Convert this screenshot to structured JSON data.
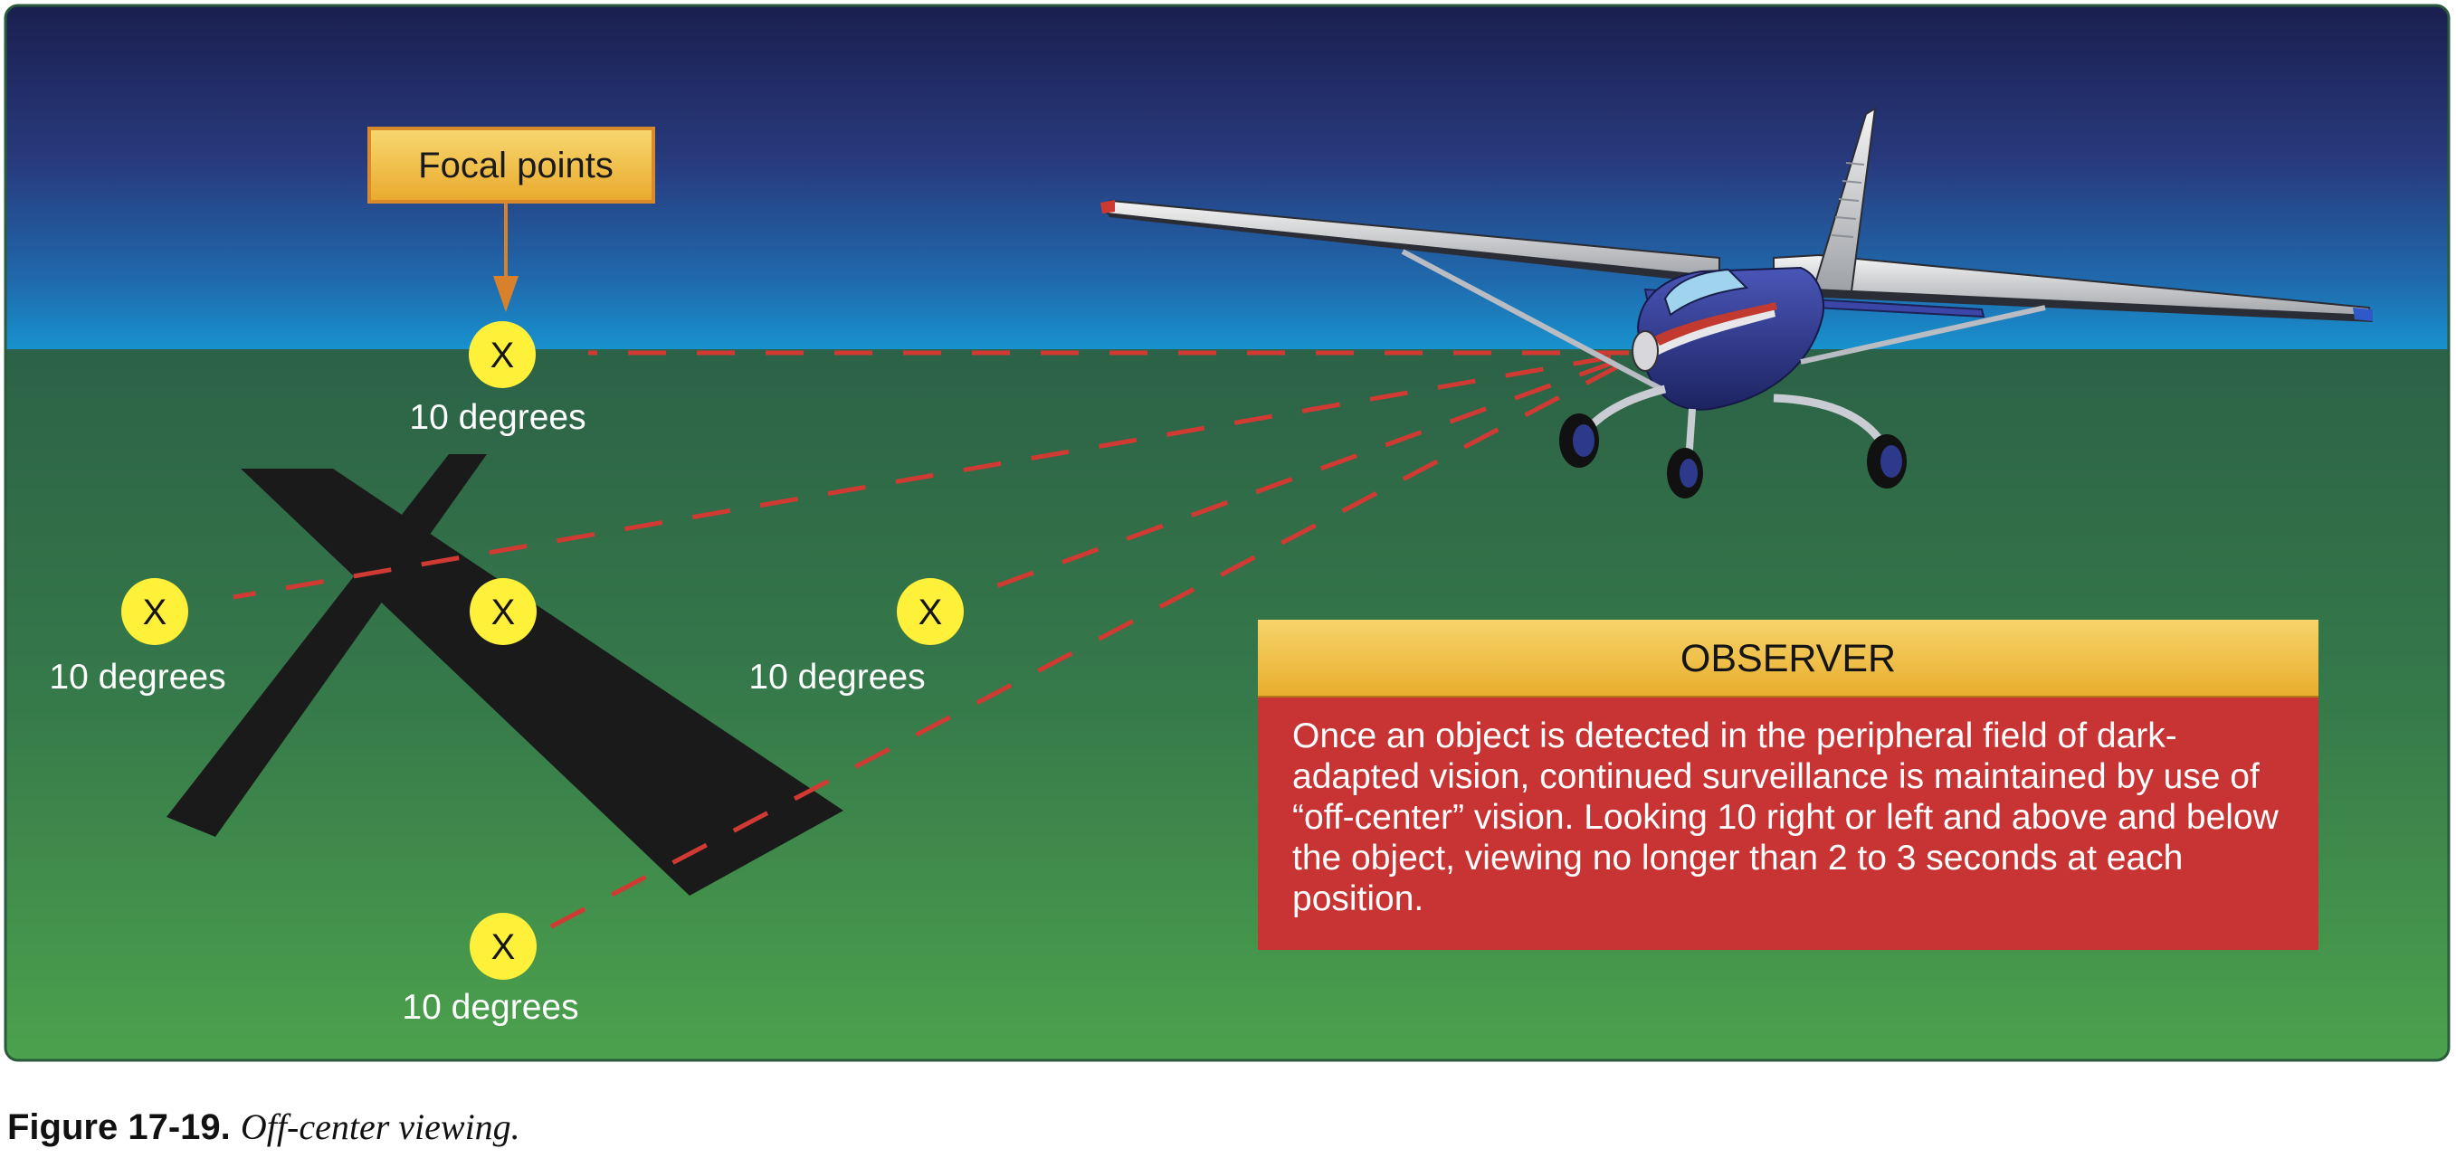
{
  "figure": {
    "number": "Figure 17-19.",
    "title": "Off-center viewing."
  },
  "callout": {
    "label": "Focal points"
  },
  "focal_points": [
    {
      "id": "top",
      "marker": "X",
      "label": "10 degrees"
    },
    {
      "id": "left",
      "marker": "X",
      "label": "10 degrees"
    },
    {
      "id": "center",
      "marker": "X",
      "label": ""
    },
    {
      "id": "right",
      "marker": "X",
      "label": "10 degrees"
    },
    {
      "id": "bottom",
      "marker": "X",
      "label": "10 degrees"
    }
  ],
  "observer": {
    "heading": "OBSERVER",
    "text": "Once an object is detected in the peripheral field of dark-adapted vision, continued surveillance is maintained by use of “off-center” vision. Looking 10   right or left and above and below the object, viewing no longer than 2 to 3 seconds at each position."
  },
  "colors": {
    "sky_top": "#1c2354",
    "sky_horizon": "#1b86c6",
    "ground_top": "#2d6548",
    "ground_bottom": "#4aa04c",
    "focal_marker": "#fff13a",
    "sight_line": "#d13a33",
    "callout_box": "#f2c24e",
    "observer_box": "#c83333"
  }
}
